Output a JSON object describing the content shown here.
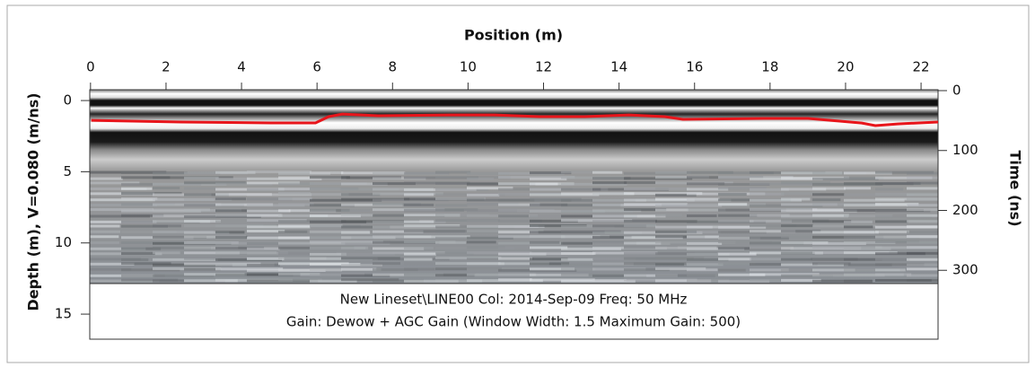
{
  "chart_data": {
    "type": "radargram",
    "title": "Position (m)",
    "y_label": "Depth (m), V=0.080 (m/ns)",
    "y2_label": "Time (ns)",
    "info_lines": [
      "New Lineset\\LINE00  Col: 2014-Sep-09  Freq: 50 MHz",
      "Gain: Dewow + AGC Gain (Window Width: 1.5 Maximum Gain: 500)"
    ],
    "xlim": [
      -0.02,
      22.45
    ],
    "xticks": [
      0,
      2,
      4,
      6,
      8,
      10,
      12,
      14,
      16,
      18,
      20,
      22
    ],
    "ylim": [
      16.76,
      -0.76
    ],
    "yticks": [
      0,
      5,
      10,
      15
    ],
    "y2lim": [
      415,
      -1.5
    ],
    "y2ticks": [
      0,
      100,
      200,
      300
    ],
    "x": [
      0.02,
      2.4,
      4.77,
      5.96,
      6.31,
      6.67,
      7.62,
      9.52,
      10.7,
      11.89,
      13.08,
      14.26,
      15.21,
      15.69,
      17.82,
      19.01,
      20.43,
      20.79,
      21.38,
      22.45
    ],
    "series": [
      {
        "color": "#e8151b",
        "values": [
          1.39,
          1.51,
          1.57,
          1.57,
          1.13,
          0.95,
          1.07,
          1.01,
          1.01,
          1.13,
          1.13,
          1.01,
          1.13,
          1.32,
          1.26,
          1.26,
          1.58,
          1.76,
          1.64,
          1.51
        ]
      }
    ]
  }
}
